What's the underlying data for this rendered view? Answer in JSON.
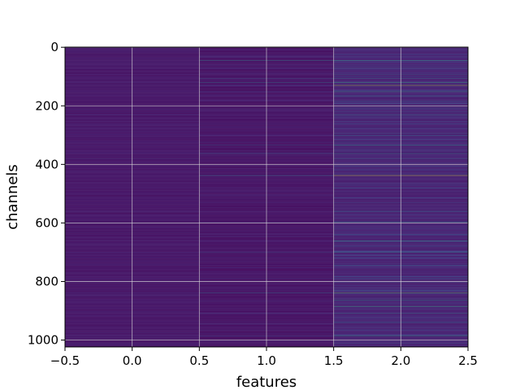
{
  "chart_data": {
    "type": "heatmap",
    "title": "",
    "xlabel": "features",
    "ylabel": "channels",
    "xlim": [
      -0.5,
      2.5
    ],
    "ylim": [
      1023.5,
      -0.5
    ],
    "columns": [
      0,
      1,
      2
    ],
    "rows": 1024,
    "x_tick_values": [
      -0.5,
      0.0,
      0.5,
      1.0,
      1.5,
      2.0,
      2.5
    ],
    "x_tick_labels": [
      "−0.5",
      "0.0",
      "0.5",
      "1.0",
      "1.5",
      "2.0",
      "2.5"
    ],
    "y_tick_values": [
      0,
      200,
      400,
      600,
      800,
      1000
    ],
    "y_tick_labels": [
      "0",
      "200",
      "400",
      "600",
      "800",
      "1000"
    ],
    "grid": true,
    "colormap": "viridis",
    "colormap_stops": [
      "#440154",
      "#482878",
      "#3e4989",
      "#31688e",
      "#26828e",
      "#1f9e89",
      "#35b779",
      "#6ece58",
      "#b5de2b",
      "#fde725"
    ],
    "column_base_level": [
      0.06,
      0.05,
      0.09
    ],
    "highlight_rows": [
      {
        "channel": 12,
        "values": [
          0.12,
          0.06,
          0.18
        ]
      },
      {
        "channel": 45,
        "values": [
          0.1,
          0.48,
          0.58
        ]
      },
      {
        "channel": 70,
        "values": [
          0.08,
          0.18,
          0.28
        ]
      },
      {
        "channel": 92,
        "values": [
          0.09,
          0.1,
          0.32
        ]
      },
      {
        "channel": 106,
        "values": [
          0.07,
          0.3,
          0.4
        ]
      },
      {
        "channel": 121,
        "values": [
          0.1,
          0.38,
          0.62
        ]
      },
      {
        "channel": 130,
        "values": [
          0.08,
          0.22,
          0.88
        ]
      },
      {
        "channel": 152,
        "values": [
          0.1,
          0.18,
          0.6
        ]
      },
      {
        "channel": 166,
        "values": [
          0.08,
          0.14,
          0.46
        ]
      },
      {
        "channel": 184,
        "values": [
          0.07,
          0.12,
          0.35
        ]
      },
      {
        "channel": 230,
        "values": [
          0.14,
          0.1,
          0.4
        ]
      },
      {
        "channel": 262,
        "values": [
          0.08,
          0.1,
          0.28
        ]
      },
      {
        "channel": 300,
        "values": [
          0.08,
          0.12,
          0.33
        ]
      },
      {
        "channel": 335,
        "values": [
          0.1,
          0.3,
          0.58
        ]
      },
      {
        "channel": 363,
        "values": [
          0.08,
          0.34,
          0.5
        ]
      },
      {
        "channel": 380,
        "values": [
          0.18,
          0.12,
          0.36
        ]
      },
      {
        "channel": 438,
        "values": [
          0.1,
          0.4,
          0.95
        ]
      },
      {
        "channel": 482,
        "values": [
          0.09,
          0.12,
          0.33
        ]
      },
      {
        "channel": 515,
        "values": [
          0.08,
          0.1,
          0.29
        ]
      },
      {
        "channel": 560,
        "values": [
          0.1,
          0.14,
          0.38
        ]
      },
      {
        "channel": 598,
        "values": [
          0.08,
          0.12,
          0.45
        ]
      },
      {
        "channel": 640,
        "values": [
          0.09,
          0.1,
          0.33
        ]
      },
      {
        "channel": 662,
        "values": [
          0.08,
          0.12,
          0.55
        ]
      },
      {
        "channel": 700,
        "values": [
          0.1,
          0.26,
          0.48
        ]
      },
      {
        "channel": 745,
        "values": [
          0.08,
          0.1,
          0.36
        ]
      },
      {
        "channel": 790,
        "values": [
          0.07,
          0.18,
          0.3
        ]
      },
      {
        "channel": 838,
        "values": [
          0.12,
          0.38,
          0.75
        ]
      },
      {
        "channel": 865,
        "values": [
          0.08,
          0.14,
          0.52
        ]
      },
      {
        "channel": 885,
        "values": [
          0.1,
          0.12,
          0.65
        ]
      },
      {
        "channel": 908,
        "values": [
          0.08,
          0.18,
          0.44
        ]
      },
      {
        "channel": 940,
        "values": [
          0.07,
          0.1,
          0.36
        ]
      },
      {
        "channel": 985,
        "values": [
          0.1,
          0.18,
          0.58
        ]
      },
      {
        "channel": 1012,
        "values": [
          0.08,
          0.1,
          0.3
        ]
      }
    ]
  }
}
